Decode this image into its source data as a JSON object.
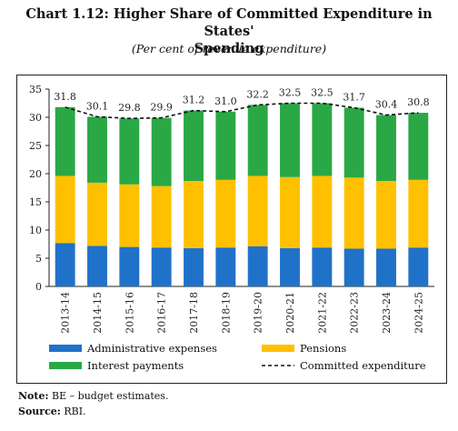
{
  "title_line1": "Chart 1.12: Higher Share of Committed Expenditure in States'",
  "title_line2": "Spending",
  "subtitle": "(Per cent of revenue expenditure)",
  "note_label": "Note:",
  "note_text": "BE – budget estimates.",
  "source_label": "Source:",
  "source_text": "RBI.",
  "chart_data": {
    "type": "bar",
    "stacked": true,
    "categories": [
      "2013-14",
      "2014-15",
      "2015-16",
      "2016-17",
      "2017-18",
      "2018-19",
      "2019-20",
      "2020-21",
      "2021-22",
      "2022-23",
      "2023-24",
      "2024-25"
    ],
    "series": [
      {
        "name": "Administrative expenses",
        "color": "#1f72c8",
        "values": [
          7.7,
          7.2,
          7.0,
          6.9,
          6.8,
          6.9,
          7.1,
          6.8,
          6.9,
          6.7,
          6.7,
          6.9
        ]
      },
      {
        "name": "Pensions",
        "color": "#ffc000",
        "values": [
          11.9,
          11.2,
          11.1,
          10.9,
          11.9,
          12.0,
          12.5,
          12.6,
          12.7,
          12.6,
          12.0,
          12.0
        ]
      },
      {
        "name": "Interest payments",
        "color": "#2aa846",
        "values": [
          12.2,
          11.7,
          11.7,
          12.1,
          12.5,
          12.1,
          12.6,
          13.1,
          12.9,
          12.4,
          11.7,
          11.9
        ]
      }
    ],
    "line": {
      "name": "Committed expenditure",
      "values": [
        31.8,
        30.1,
        29.8,
        29.9,
        31.2,
        31.0,
        32.2,
        32.5,
        32.5,
        31.7,
        30.4,
        30.8
      ]
    },
    "ylim": [
      0,
      35
    ],
    "yticks": [
      0,
      5,
      10,
      15,
      20,
      25,
      30,
      35
    ],
    "legend_position": "bottom",
    "grid": false
  }
}
